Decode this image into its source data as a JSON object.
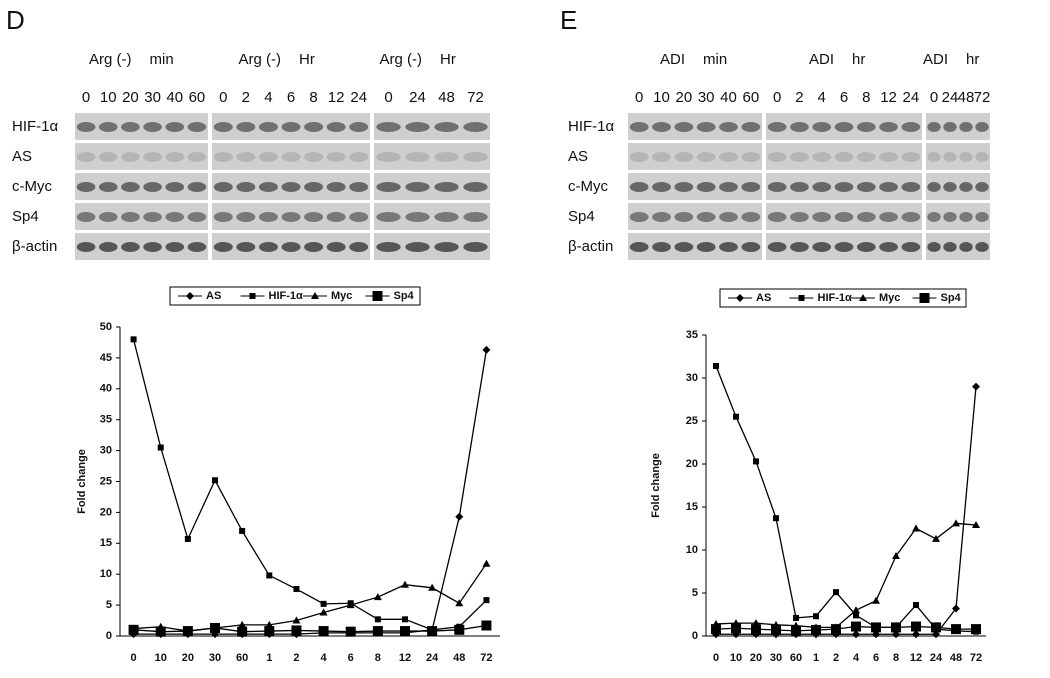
{
  "panels": [
    {
      "letter": "D",
      "headers": [
        {
          "treatment": "Arg (-)",
          "unit": "min"
        },
        {
          "treatment": "Arg (-)",
          "unit": "Hr"
        },
        {
          "treatment": "Arg (-)",
          "unit": "Hr"
        }
      ],
      "lanes": [
        [
          "0",
          "10",
          "20",
          "30",
          "40",
          "60"
        ],
        [
          "0",
          "2",
          "4",
          "6",
          "8",
          "12",
          "24"
        ],
        [
          "0",
          "24",
          "48",
          "72"
        ]
      ],
      "rows": [
        "HIF-1α",
        "AS",
        "c-Myc",
        "Sp4",
        "β-actin"
      ]
    },
    {
      "letter": "E",
      "headers": [
        {
          "treatment": "ADI",
          "unit": "min"
        },
        {
          "treatment": "ADI",
          "unit": "hr"
        },
        {
          "treatment": "ADI",
          "unit": "hr"
        }
      ],
      "lanes": [
        [
          "0",
          "10",
          "20",
          "30",
          "40",
          "60"
        ],
        [
          "0",
          "2",
          "4",
          "6",
          "8",
          "12",
          "24"
        ],
        [
          "0",
          "24",
          "48",
          "72"
        ]
      ],
      "rows": [
        "HIF-1α",
        "AS",
        "c-Myc",
        "Sp4",
        "β-actin"
      ]
    }
  ],
  "chart_data": [
    {
      "type": "line",
      "y_label": "Fold change",
      "categories": [
        "0",
        "10",
        "20",
        "30",
        "60",
        "1",
        "2",
        "4",
        "6",
        "8",
        "12",
        "24",
        "48",
        "72"
      ],
      "ylim": [
        0,
        50
      ],
      "yticks": [
        0,
        5,
        10,
        15,
        20,
        25,
        30,
        35,
        40,
        45,
        50
      ],
      "series": [
        {
          "name": "AS",
          "color": "#000000",
          "marker": "diamond",
          "values": [
            0.3,
            0.3,
            0.3,
            0.3,
            0.3,
            0.3,
            0.3,
            0.5,
            0.5,
            0.5,
            0.5,
            1,
            19.3,
            46.3
          ]
        },
        {
          "name": "HIF-1α",
          "color": "#000000",
          "marker": "square",
          "values": [
            48,
            30.5,
            15.7,
            25.2,
            17,
            9.8,
            7.6,
            5.2,
            5.3,
            2.7,
            2.7,
            1,
            1.5,
            5.8
          ]
        },
        {
          "name": "Myc",
          "color": "#000000",
          "marker": "triangle",
          "values": [
            1.2,
            1.5,
            0.8,
            1.3,
            1.8,
            1.8,
            2.5,
            3.8,
            5,
            6.3,
            8.3,
            7.8,
            5.3,
            11.7
          ]
        },
        {
          "name": "Sp4",
          "color": "#000000",
          "marker": "big-square",
          "values": [
            1,
            0.7,
            0.8,
            1.3,
            0.7,
            0.8,
            0.9,
            0.8,
            0.7,
            0.8,
            0.8,
            0.8,
            1,
            1.7
          ]
        }
      ]
    },
    {
      "type": "line",
      "y_label": "Fold change",
      "categories": [
        "0",
        "10",
        "20",
        "30",
        "60",
        "1",
        "2",
        "4",
        "6",
        "8",
        "12",
        "24",
        "48",
        "72"
      ],
      "ylim": [
        0,
        35
      ],
      "yticks": [
        0,
        5,
        10,
        15,
        20,
        25,
        30,
        35
      ],
      "series": [
        {
          "name": "AS",
          "color": "#000000",
          "marker": "diamond",
          "values": [
            0.2,
            0.2,
            0.2,
            0.2,
            0.2,
            0.2,
            0.2,
            0.2,
            0.2,
            0.2,
            0.2,
            0.2,
            3.2,
            29
          ]
        },
        {
          "name": "HIF-1α",
          "color": "#000000",
          "marker": "square",
          "values": [
            31.4,
            25.5,
            20.3,
            13.7,
            2.1,
            2.3,
            5.1,
            2.4,
            1,
            1,
            3.6,
            0.8,
            0.6,
            0.5
          ]
        },
        {
          "name": "Myc",
          "color": "#000000",
          "marker": "triangle",
          "values": [
            1.4,
            1.5,
            1.5,
            1.3,
            1.2,
            1,
            1,
            3,
            4.1,
            9.3,
            12.5,
            11.3,
            13.1,
            12.9
          ]
        },
        {
          "name": "Sp4",
          "color": "#000000",
          "marker": "big-square",
          "values": [
            0.8,
            0.9,
            0.8,
            0.7,
            0.6,
            0.7,
            0.8,
            1.1,
            1,
            1,
            1.1,
            1,
            0.8,
            0.8
          ]
        }
      ]
    }
  ]
}
